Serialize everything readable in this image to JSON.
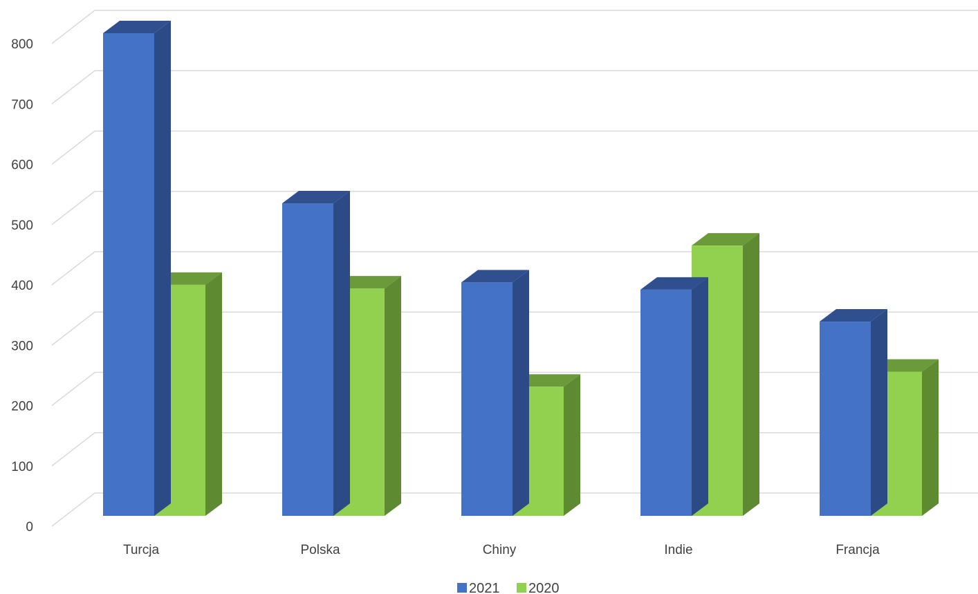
{
  "chart_data": {
    "type": "bar",
    "title": "",
    "xlabel": "",
    "ylabel": "",
    "categories": [
      "Turcja",
      "Polska",
      "Chiny",
      "Indie",
      "Francja"
    ],
    "series": [
      {
        "name": "2021",
        "values": [
          800,
          518,
          387,
          375,
          322
        ],
        "color": "#4472C4",
        "side_color": "#2C4A85",
        "top_color": "#2F4F8F"
      },
      {
        "name": "2020",
        "values": [
          383,
          377,
          214,
          448,
          239
        ],
        "color": "#92D050",
        "side_color": "#5E8A31",
        "top_color": "#6A9A39"
      }
    ],
    "y_ticks": [
      "0",
      "100",
      "200",
      "300",
      "400",
      "500",
      "600",
      "700",
      "800"
    ],
    "ylim": [
      0,
      850
    ],
    "grid": true,
    "legend_position": "bottom-center"
  }
}
